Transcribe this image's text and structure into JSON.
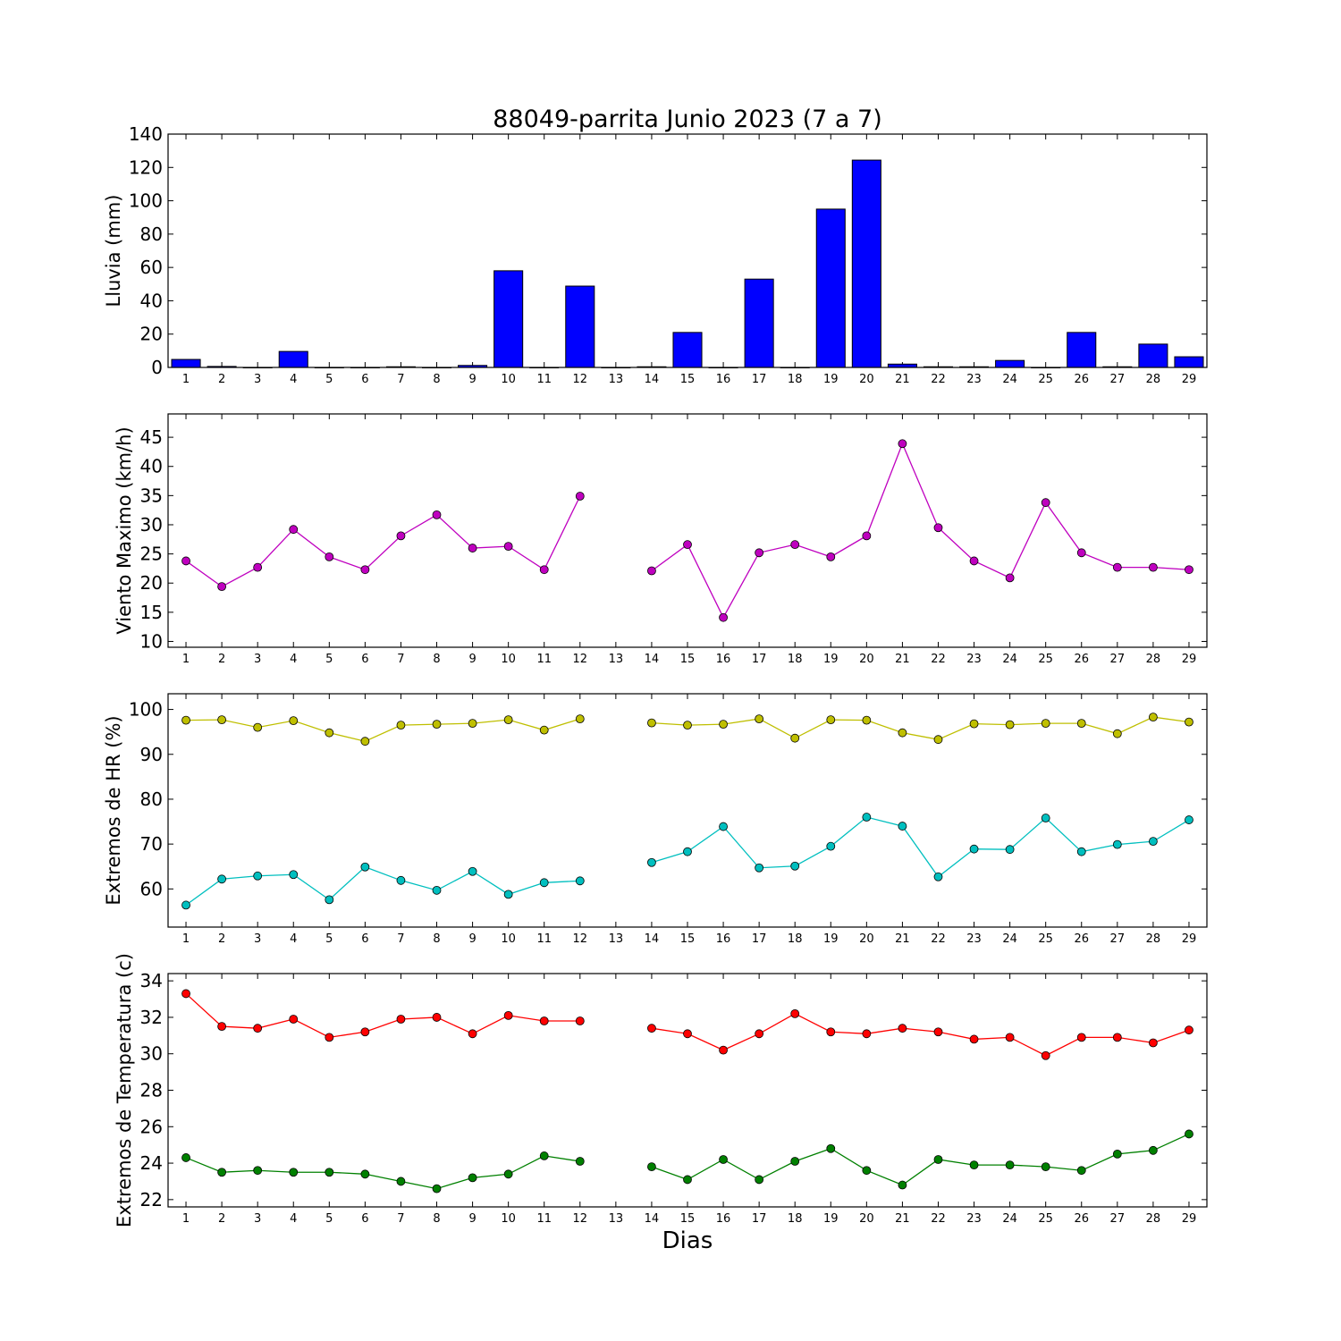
{
  "figure": {
    "title": "88049-parrita Junio 2023  (7 a 7)",
    "xlabel": "Dias"
  },
  "chart_data": [
    {
      "type": "bar",
      "ylabel": "Lluvia (mm)",
      "ylim": [
        0,
        140
      ],
      "yticks": [
        0,
        20,
        40,
        60,
        80,
        100,
        120,
        140
      ],
      "x": [
        1,
        2,
        3,
        4,
        5,
        6,
        7,
        8,
        9,
        10,
        11,
        12,
        13,
        14,
        15,
        16,
        17,
        18,
        19,
        20,
        21,
        22,
        23,
        24,
        25,
        26,
        27,
        28,
        29
      ],
      "values": [
        4.8,
        0.6,
        0,
        9.6,
        0,
        0,
        0.4,
        0,
        1.2,
        58,
        0,
        48.8,
        0,
        0.4,
        21,
        0,
        53,
        0,
        95,
        124.4,
        2,
        0.4,
        0.4,
        4.2,
        0,
        21,
        0.4,
        14,
        6.4
      ],
      "color": "#0000ff",
      "grid": false
    },
    {
      "type": "line",
      "ylabel": "Viento Maximo (km/h)",
      "ylim": [
        9,
        49
      ],
      "yticks": [
        10,
        15,
        20,
        25,
        30,
        35,
        40,
        45
      ],
      "x": [
        1,
        2,
        3,
        4,
        5,
        6,
        7,
        8,
        9,
        10,
        11,
        12,
        13,
        14,
        15,
        16,
        17,
        18,
        19,
        20,
        21,
        22,
        23,
        24,
        25,
        26,
        27,
        28,
        29
      ],
      "series": [
        {
          "values": [
            23.8,
            19.4,
            22.7,
            29.2,
            24.5,
            22.3,
            28.1,
            31.7,
            26,
            26.3,
            22.3,
            34.9,
            null,
            22.1,
            26.6,
            14.1,
            25.2,
            26.6,
            24.5,
            28.1,
            43.9,
            29.5,
            23.8,
            20.9,
            33.8,
            25.2,
            22.7,
            22.7,
            22.3
          ],
          "color": "#bf00bf"
        }
      ],
      "grid": false
    },
    {
      "type": "line",
      "ylabel": "Extremos de HR (%)",
      "ylim": [
        51.5,
        103.5
      ],
      "yticks": [
        60,
        70,
        80,
        90,
        100
      ],
      "x": [
        1,
        2,
        3,
        4,
        5,
        6,
        7,
        8,
        9,
        10,
        11,
        12,
        13,
        14,
        15,
        16,
        17,
        18,
        19,
        20,
        21,
        22,
        23,
        24,
        25,
        26,
        27,
        28,
        29
      ],
      "series": [
        {
          "values": [
            97.6,
            97.7,
            96,
            97.5,
            94.8,
            92.9,
            96.5,
            96.7,
            96.9,
            97.7,
            95.4,
            97.9,
            null,
            97,
            96.5,
            96.7,
            97.9,
            93.6,
            97.7,
            97.6,
            94.8,
            93.3,
            96.8,
            96.6,
            96.9,
            96.9,
            94.6,
            98.3,
            97.2
          ],
          "color": "#bfbf00"
        },
        {
          "values": [
            56.4,
            62.2,
            62.9,
            63.2,
            57.6,
            64.9,
            61.9,
            59.7,
            63.9,
            58.8,
            61.4,
            61.8,
            null,
            65.9,
            68.3,
            73.9,
            64.7,
            65.1,
            69.5,
            76,
            74,
            62.7,
            68.9,
            68.8,
            75.8,
            68.3,
            69.9,
            70.6,
            75.4
          ],
          "color": "#00bfbf"
        }
      ],
      "grid": false
    },
    {
      "type": "line",
      "ylabel": "Extremos de Temperatura (c)",
      "ylim": [
        21.6,
        34.4
      ],
      "yticks": [
        22,
        24,
        26,
        28,
        30,
        32,
        34
      ],
      "x": [
        1,
        2,
        3,
        4,
        5,
        6,
        7,
        8,
        9,
        10,
        11,
        12,
        13,
        14,
        15,
        16,
        17,
        18,
        19,
        20,
        21,
        22,
        23,
        24,
        25,
        26,
        27,
        28,
        29
      ],
      "series": [
        {
          "values": [
            33.3,
            31.5,
            31.4,
            31.9,
            30.9,
            31.2,
            31.9,
            32,
            31.1,
            32.1,
            31.8,
            31.8,
            null,
            31.4,
            31.1,
            30.2,
            31.1,
            32.2,
            31.2,
            31.1,
            31.4,
            31.2,
            30.8,
            30.9,
            29.9,
            30.9,
            30.9,
            30.6,
            31.3
          ],
          "color": "#ff0000"
        },
        {
          "values": [
            24.3,
            23.5,
            23.6,
            23.5,
            23.5,
            23.4,
            23,
            22.6,
            23.2,
            23.4,
            24.4,
            24.1,
            null,
            23.8,
            23.1,
            24.2,
            23.1,
            24.1,
            24.8,
            23.6,
            22.8,
            24.2,
            23.9,
            23.9,
            23.8,
            23.6,
            24.5,
            24.7,
            25.6
          ],
          "color": "#008000"
        }
      ],
      "grid": false
    }
  ]
}
